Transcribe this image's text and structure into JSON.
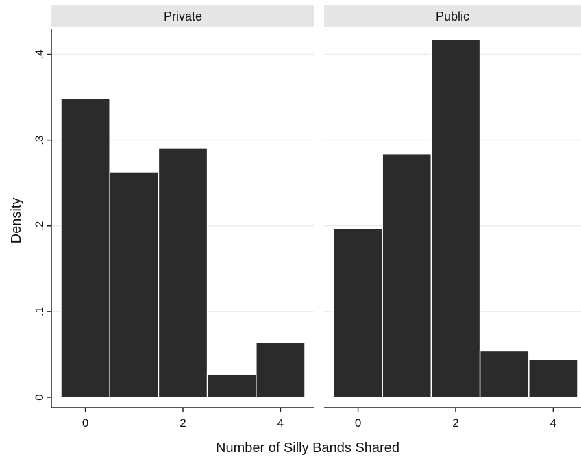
{
  "chart_data": {
    "type": "bar",
    "subtype": "histogram",
    "xlabel": "Number of Silly Bands Shared",
    "ylabel": "Density",
    "ylim": [
      0,
      0.43
    ],
    "yticks": [
      {
        "value": 0,
        "label": "0"
      },
      {
        "value": 0.1,
        "label": ".1"
      },
      {
        "value": 0.2,
        "label": ".2"
      },
      {
        "value": 0.3,
        "label": ".3"
      },
      {
        "value": 0.4,
        "label": ".4"
      }
    ],
    "xticks": [
      {
        "value": 0,
        "label": "0"
      },
      {
        "value": 2,
        "label": "2"
      },
      {
        "value": 4,
        "label": "4"
      }
    ],
    "xlim": [
      -0.5,
      4.5
    ],
    "grid": true,
    "bar_color": "#2b2b2b",
    "panels": [
      {
        "title": "Private",
        "categories": [
          "0",
          "1",
          "2",
          "3",
          "4"
        ],
        "x": [
          0,
          1,
          2,
          3,
          4
        ],
        "values": [
          0.349,
          0.263,
          0.291,
          0.027,
          0.064
        ]
      },
      {
        "title": "Public",
        "categories": [
          "0",
          "1",
          "2",
          "3",
          "4"
        ],
        "x": [
          0,
          1,
          2,
          3,
          4
        ],
        "values": [
          0.197,
          0.284,
          0.417,
          0.054,
          0.044
        ]
      }
    ]
  }
}
